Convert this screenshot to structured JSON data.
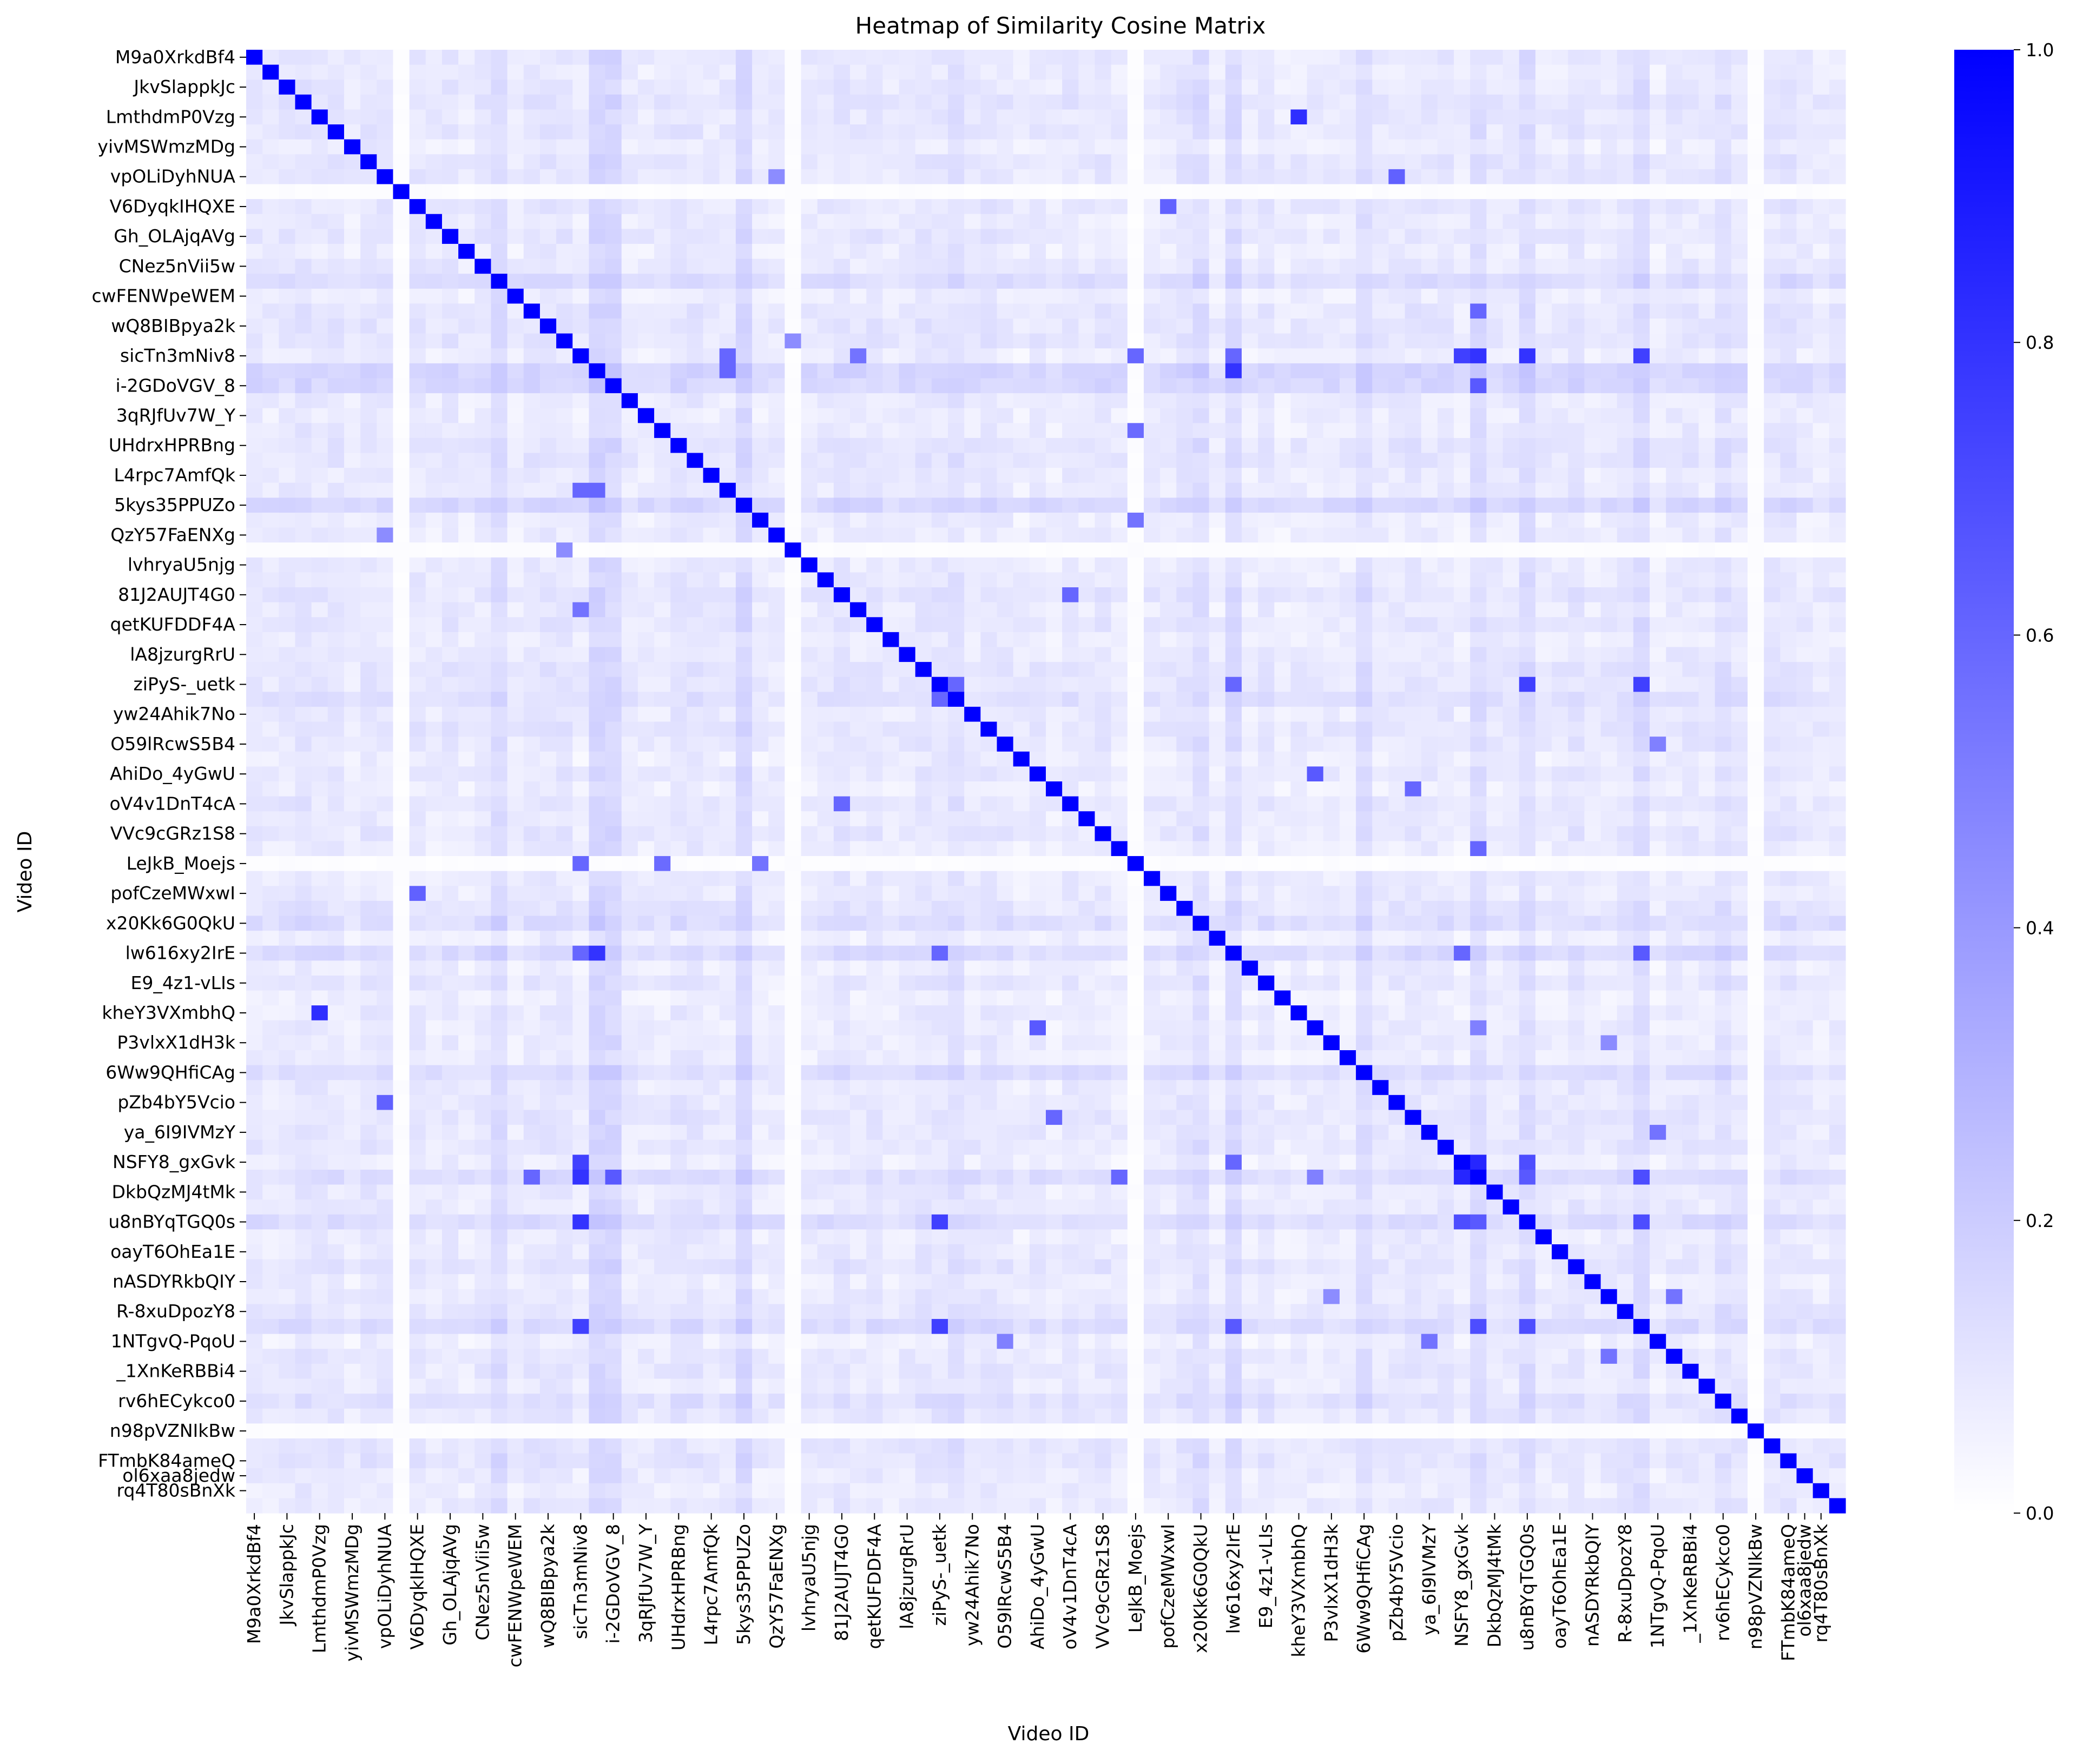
{
  "chart_data": {
    "type": "heatmap",
    "title": "Heatmap of Similarity Cosine Matrix",
    "xlabel": "Video ID",
    "ylabel": "Video ID",
    "n_rows": 98,
    "value_range": [
      0,
      1
    ],
    "colormap": {
      "low": "#ffffff",
      "high": "#0000ff"
    },
    "colorbar_ticks": [
      "0.0",
      "0.2",
      "0.4",
      "0.6",
      "0.8",
      "1.0"
    ],
    "colorbar_tick_values": [
      0,
      0.2,
      0.4,
      0.6,
      0.8,
      1.0
    ],
    "diagonal_value": 1.0,
    "typical_offdiagonal_range": [
      0.0,
      0.3
    ],
    "tick_labels": [
      {
        "index": 0,
        "label": "M9a0XrkdBf4"
      },
      {
        "index": 2,
        "label": "JkvSlappkJc"
      },
      {
        "index": 4,
        "label": "LmthdmP0Vzg"
      },
      {
        "index": 6,
        "label": "yivMSWmzMDg"
      },
      {
        "index": 8,
        "label": "vpOLiDyhNUA"
      },
      {
        "index": 10,
        "label": "V6DyqkIHQXE"
      },
      {
        "index": 12,
        "label": "Gh_OLAjqAVg"
      },
      {
        "index": 14,
        "label": "CNez5nVii5w"
      },
      {
        "index": 16,
        "label": "cwFENWpeWEM"
      },
      {
        "index": 18,
        "label": "wQ8BIBpya2k"
      },
      {
        "index": 20,
        "label": "sicTn3mNiv8"
      },
      {
        "index": 22,
        "label": "i-2GDoVGV_8"
      },
      {
        "index": 24,
        "label": "3qRJfUv7W_Y"
      },
      {
        "index": 26,
        "label": "UHdrxHPRBng"
      },
      {
        "index": 28,
        "label": "L4rpc7AmfQk"
      },
      {
        "index": 30,
        "label": "5kys35PPUZo"
      },
      {
        "index": 32,
        "label": "QzY57FaENXg"
      },
      {
        "index": 34,
        "label": "lvhryaU5njg"
      },
      {
        "index": 36,
        "label": "81J2AUJT4G0"
      },
      {
        "index": 38,
        "label": "qetKUFDDF4A"
      },
      {
        "index": 40,
        "label": "lA8jzurgRrU"
      },
      {
        "index": 42,
        "label": "ziPyS-_uetk"
      },
      {
        "index": 44,
        "label": "yw24Ahik7No"
      },
      {
        "index": 46,
        "label": "O59lRcwS5B4"
      },
      {
        "index": 48,
        "label": "AhiDo_4yGwU"
      },
      {
        "index": 50,
        "label": "oV4v1DnT4cA"
      },
      {
        "index": 52,
        "label": "VVc9cGRz1S8"
      },
      {
        "index": 54,
        "label": "LeJkB_Moejs"
      },
      {
        "index": 56,
        "label": "pofCzeMWxwI"
      },
      {
        "index": 58,
        "label": "x20Kk6G0QkU"
      },
      {
        "index": 60,
        "label": "lw616xy2IrE"
      },
      {
        "index": 62,
        "label": "E9_4z1-vLIs"
      },
      {
        "index": 64,
        "label": "kheY3VXmbhQ"
      },
      {
        "index": 66,
        "label": "P3vlxX1dH3k"
      },
      {
        "index": 68,
        "label": "6Ww9QHfiCAg"
      },
      {
        "index": 70,
        "label": "pZb4bY5Vcio"
      },
      {
        "index": 72,
        "label": "ya_6I9IVMzY"
      },
      {
        "index": 74,
        "label": "NSFY8_gxGvk"
      },
      {
        "index": 76,
        "label": "DkbQzMJ4tMk"
      },
      {
        "index": 78,
        "label": "u8nBYqTGQ0s"
      },
      {
        "index": 80,
        "label": "oayT6OhEa1E"
      },
      {
        "index": 82,
        "label": "nASDYRkbQIY"
      },
      {
        "index": 84,
        "label": "R-8xuDpozY8"
      },
      {
        "index": 86,
        "label": "1NTgvQ-PqoU"
      },
      {
        "index": 88,
        "label": "_1XnKeRBBi4"
      },
      {
        "index": 90,
        "label": "rv6hECykco0"
      },
      {
        "index": 92,
        "label": "n98pVZNIkBw"
      },
      {
        "index": 94,
        "label": "FTmbK84ameQ"
      },
      {
        "index": 95,
        "label": "ol6xaa8jedw"
      },
      {
        "index": 96,
        "label": "rq4T80sBnXk"
      }
    ],
    "tick_label_indices_x": [
      0,
      2,
      4,
      6,
      8,
      10,
      12,
      14,
      16,
      18,
      20,
      22,
      24,
      26,
      28,
      30,
      32,
      34,
      36,
      38,
      40,
      42,
      44,
      46,
      48,
      50,
      52,
      54,
      56,
      58,
      60,
      62,
      64,
      66,
      68,
      70,
      72,
      74,
      76,
      78,
      80,
      82,
      84,
      86,
      88,
      90,
      92,
      94,
      95,
      96
    ],
    "tick_label_indices_y": [
      0,
      2,
      4,
      6,
      8,
      10,
      12,
      14,
      16,
      18,
      20,
      22,
      24,
      26,
      28,
      30,
      32,
      34,
      36,
      38,
      40,
      42,
      44,
      46,
      48,
      50,
      52,
      54,
      56,
      58,
      60,
      62,
      64,
      66,
      68,
      70,
      72,
      74,
      76,
      78,
      80,
      82,
      84,
      86,
      88,
      90,
      92,
      94,
      95,
      96
    ],
    "near_zero_rows": [
      9,
      33,
      54,
      92
    ],
    "strong_pairs": [
      [
        4,
        64,
        0.82
      ],
      [
        8,
        70,
        0.62
      ],
      [
        10,
        56,
        0.62
      ],
      [
        17,
        75,
        0.6
      ],
      [
        20,
        29,
        0.6
      ],
      [
        20,
        37,
        0.55
      ],
      [
        20,
        54,
        0.6
      ],
      [
        20,
        60,
        0.6
      ],
      [
        20,
        74,
        0.75
      ],
      [
        20,
        75,
        0.8
      ],
      [
        20,
        78,
        0.8
      ],
      [
        20,
        85,
        0.75
      ],
      [
        21,
        29,
        0.6
      ],
      [
        21,
        60,
        0.8
      ],
      [
        22,
        75,
        0.65
      ],
      [
        25,
        54,
        0.58
      ],
      [
        31,
        54,
        0.55
      ],
      [
        36,
        50,
        0.6
      ],
      [
        42,
        43,
        0.6
      ],
      [
        42,
        60,
        0.6
      ],
      [
        42,
        78,
        0.75
      ],
      [
        42,
        85,
        0.75
      ],
      [
        48,
        65,
        0.65
      ],
      [
        49,
        71,
        0.6
      ],
      [
        53,
        75,
        0.6
      ],
      [
        60,
        74,
        0.6
      ],
      [
        60,
        85,
        0.65
      ],
      [
        65,
        75,
        0.5
      ],
      [
        74,
        75,
        0.85
      ],
      [
        74,
        78,
        0.7
      ],
      [
        75,
        78,
        0.65
      ],
      [
        75,
        85,
        0.7
      ],
      [
        78,
        85,
        0.7
      ],
      [
        72,
        86,
        0.55
      ],
      [
        83,
        87,
        0.55
      ],
      [
        19,
        33,
        0.45
      ],
      [
        8,
        32,
        0.45
      ],
      [
        66,
        83,
        0.45
      ],
      [
        46,
        86,
        0.5
      ]
    ],
    "hot_rows": [
      {
        "row": 15,
        "base": 0.17
      },
      {
        "row": 21,
        "base": 0.22
      },
      {
        "row": 22,
        "base": 0.2
      },
      {
        "row": 30,
        "base": 0.2
      },
      {
        "row": 43,
        "base": 0.14
      },
      {
        "row": 58,
        "base": 0.16
      },
      {
        "row": 60,
        "base": 0.18
      },
      {
        "row": 68,
        "base": 0.16
      },
      {
        "row": 75,
        "base": 0.16
      },
      {
        "row": 78,
        "base": 0.17
      },
      {
        "row": 85,
        "base": 0.17
      },
      {
        "row": 90,
        "base": 0.14
      }
    ]
  }
}
